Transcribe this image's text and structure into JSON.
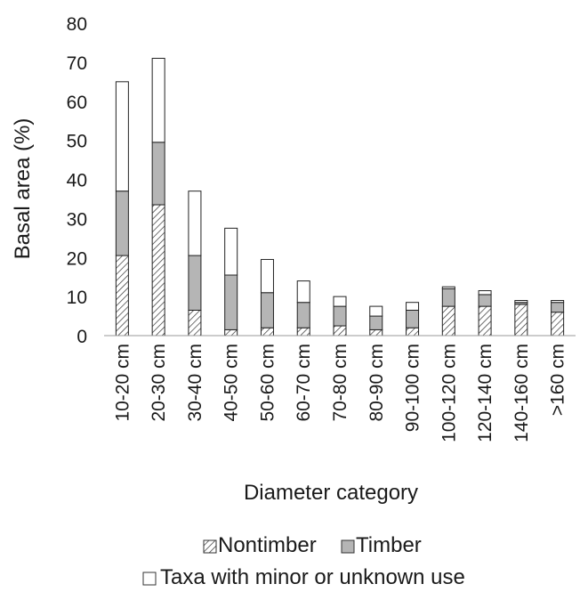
{
  "chart_data": {
    "type": "bar",
    "stacked": true,
    "xlabel": "Diameter category",
    "ylabel": "Basal area (%)",
    "ylim": [
      0,
      80
    ],
    "yticks": [
      0,
      10,
      20,
      30,
      40,
      50,
      60,
      70,
      80
    ],
    "grid": false,
    "legend_position": "bottom",
    "categories": [
      "10-20 cm",
      "20-30 cm",
      "30-40 cm",
      "40-50 cm",
      "50-60 cm",
      "60-70 cm",
      "70-80 cm",
      "80-90 cm",
      "90-100 cm",
      "100-120 cm",
      "120-140 cm",
      "140-160 cm",
      ">160 cm"
    ],
    "series": [
      {
        "name": "Nontimber",
        "pattern": "hatched",
        "color": "#ffffff",
        "values": [
          20.5,
          33.5,
          6.5,
          1.5,
          2.0,
          2.0,
          2.5,
          1.5,
          2.0,
          7.5,
          7.5,
          8.0,
          6.0
        ]
      },
      {
        "name": "Timber",
        "pattern": "solid",
        "color": "#b5b5b5",
        "values": [
          16.5,
          16.0,
          14.0,
          14.0,
          9.0,
          6.5,
          5.0,
          3.5,
          4.5,
          4.5,
          3.0,
          0.5,
          2.5
        ]
      },
      {
        "name": "Taxa with minor or unknown use",
        "pattern": "solid",
        "color": "#ffffff",
        "values": [
          28.0,
          21.5,
          16.5,
          12.0,
          8.5,
          5.5,
          2.5,
          2.5,
          2.0,
          0.5,
          1.0,
          0.5,
          0.5
        ]
      }
    ]
  }
}
